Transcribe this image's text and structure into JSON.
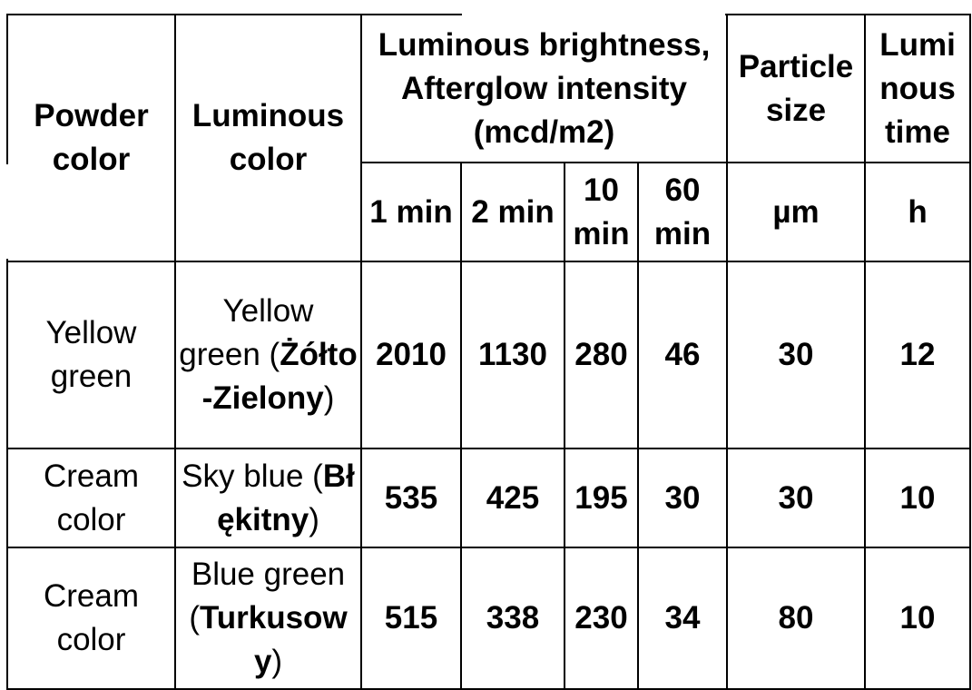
{
  "header": {
    "powder_color": "Powder color",
    "luminous_color": "Luminous color",
    "brightness": "Luminous brightness, Afterglow intensity (mcd/m2)",
    "particle_size": "Particle size",
    "luminous_time": "Lumi nous time",
    "sub": {
      "min1": "1 min",
      "min2": "2 min",
      "min10": "10 min",
      "min60": "60 min",
      "particle_unit": "µm",
      "time_unit": "h"
    }
  },
  "rows": [
    {
      "powder_color": "Yellow green",
      "luminous_color": "Yellow green",
      "luminous_color_pl": "Żółto-Zielony",
      "min1": "2010",
      "min2": "1130",
      "min10": "280",
      "min60": "46",
      "particle_size": "30",
      "luminous_time": "12"
    },
    {
      "powder_color": "Cream color",
      "luminous_color": "Sky blue",
      "luminous_color_pl": "Błękitny",
      "min1": "535",
      "min2": "425",
      "min10": "195",
      "min60": "30",
      "particle_size": "30",
      "luminous_time": "10"
    },
    {
      "powder_color": "Cream color",
      "luminous_color": "Blue green",
      "luminous_color_pl": "Turkusowy",
      "min1": "515",
      "min2": "338",
      "min10": "230",
      "min60": "34",
      "particle_size": "80",
      "luminous_time": "10"
    }
  ],
  "punctuation": {
    "open": "(",
    "close": ")"
  }
}
